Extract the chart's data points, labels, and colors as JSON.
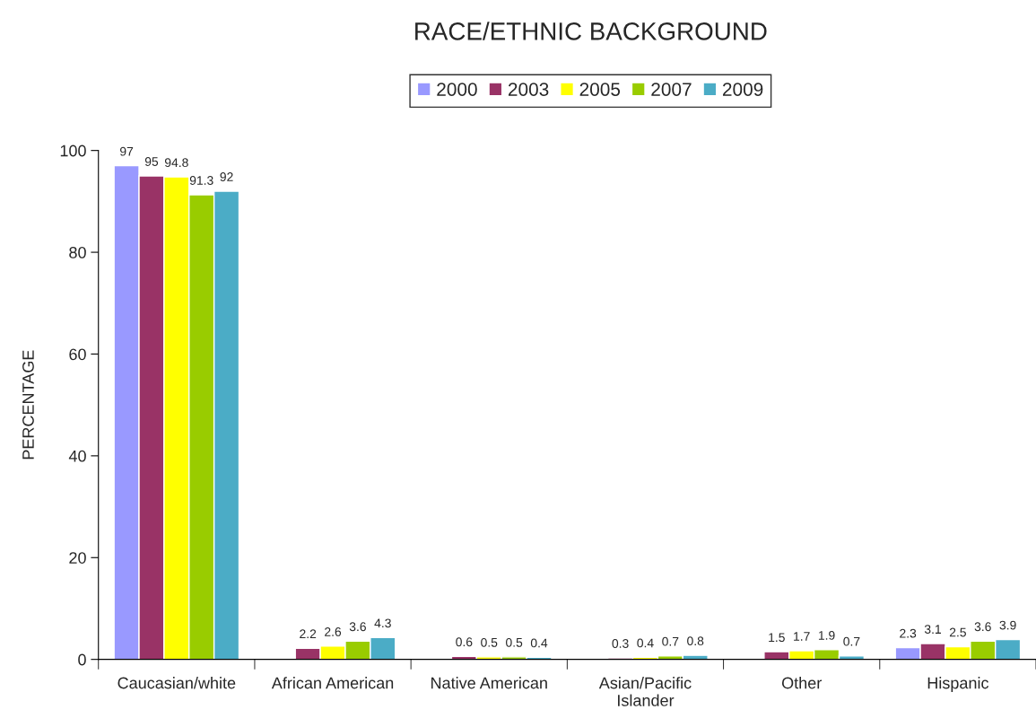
{
  "chart_data": {
    "type": "bar",
    "title": "RACE/ETHNIC BACKGROUND",
    "ylabel": "PERCENTAGE",
    "categories": [
      "Caucasian/white",
      "African American",
      "Native American",
      "Asian/Pacific\nIslander",
      "Other",
      "Hispanic"
    ],
    "series": [
      {
        "name": "2000",
        "color": "#9999ff",
        "values": [
          97,
          null,
          null,
          null,
          null,
          2.3
        ]
      },
      {
        "name": "2003",
        "color": "#993366",
        "values": [
          95,
          2.2,
          0.6,
          0.3,
          1.5,
          3.1
        ]
      },
      {
        "name": "2005",
        "color": "#ffff00",
        "values": [
          94.8,
          2.6,
          0.5,
          0.4,
          1.7,
          2.5
        ]
      },
      {
        "name": "2007",
        "color": "#99cc00",
        "values": [
          91.3,
          3.6,
          0.5,
          0.7,
          1.9,
          3.6
        ]
      },
      {
        "name": "2009",
        "color": "#4bacc6",
        "values": [
          92,
          4.3,
          0.4,
          0.8,
          0.7,
          3.9
        ]
      }
    ],
    "ylim": [
      0,
      100
    ],
    "yticks": [
      0,
      20,
      40,
      60,
      80,
      100
    ],
    "data_labels": true,
    "legend": "top",
    "grid": false
  }
}
